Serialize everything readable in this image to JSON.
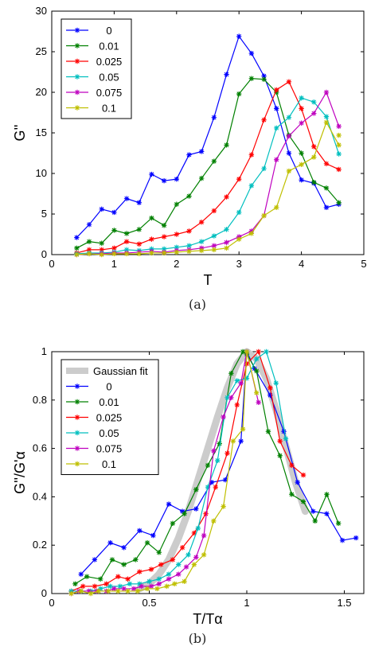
{
  "colors": {
    "0": "#0000ff",
    "0.01": "#008000",
    "0.025": "#ff0000",
    "0.05": "#00bfbf",
    "0.075": "#bf00bf",
    "0.1": "#bfbf00",
    "gauss": "#cccccc"
  },
  "chart_data": [
    {
      "type": "line",
      "panel": "(a)",
      "xlabel": "T",
      "ylabel": "G''",
      "xlim": [
        0,
        5
      ],
      "ylim": [
        0,
        30
      ],
      "xticks": [
        "0",
        "1",
        "2",
        "3",
        "4",
        "5"
      ],
      "yticks": [
        "0",
        "5",
        "10",
        "15",
        "20",
        "25",
        "30"
      ],
      "legend": "top-left",
      "x": [
        0.4,
        0.6,
        0.8,
        1.0,
        1.2,
        1.4,
        1.6,
        1.8,
        2.0,
        2.2,
        2.4,
        2.6,
        2.8,
        3.0,
        3.2,
        3.4,
        3.6,
        3.8,
        4.0,
        4.2,
        4.4,
        4.6
      ],
      "series": [
        {
          "name": "0",
          "values": [
            2.1,
            3.7,
            5.6,
            5.2,
            6.9,
            6.4,
            9.9,
            9.1,
            9.3,
            12.3,
            12.7,
            16.9,
            22.2,
            26.9,
            24.8,
            22.0,
            18.0,
            12.5,
            9.2,
            8.8,
            5.8,
            6.2
          ]
        },
        {
          "name": "0.01",
          "values": [
            0.8,
            1.6,
            1.4,
            3.0,
            2.6,
            3.1,
            4.5,
            3.6,
            6.2,
            7.2,
            9.4,
            11.5,
            13.5,
            19.8,
            21.7,
            21.6,
            20.0,
            14.7,
            12.5,
            8.9,
            8.2,
            6.4
          ]
        },
        {
          "name": "0.025",
          "values": [
            0.2,
            0.6,
            0.6,
            0.8,
            1.6,
            1.3,
            1.9,
            2.2,
            2.5,
            2.9,
            4.0,
            5.4,
            7.1,
            9.3,
            12.3,
            16.6,
            20.3,
            21.3,
            18.0,
            13.3,
            11.2,
            10.5
          ]
        },
        {
          "name": "0.05",
          "values": [
            0.1,
            0.2,
            0.2,
            0.3,
            0.6,
            0.5,
            0.7,
            0.7,
            0.9,
            1.1,
            1.6,
            2.3,
            3.1,
            5.2,
            8.5,
            10.6,
            15.6,
            16.9,
            19.3,
            18.8,
            17.0,
            12.4
          ]
        },
        {
          "name": "0.075",
          "values": [
            0.0,
            0.1,
            0.1,
            0.2,
            0.2,
            0.3,
            0.4,
            0.3,
            0.5,
            0.6,
            0.8,
            1.1,
            1.5,
            2.2,
            2.9,
            4.8,
            11.7,
            14.6,
            16.2,
            17.4,
            20.0,
            15.8
          ]
        },
        {
          "name": "0.1",
          "values": [
            0.0,
            0.1,
            0.0,
            0.1,
            0.1,
            0.1,
            0.2,
            0.2,
            0.3,
            0.4,
            0.5,
            0.6,
            0.8,
            1.9,
            2.6,
            4.8,
            5.8,
            10.3,
            11.1,
            12.0,
            16.3,
            13.5
          ]
        }
      ],
      "extra_point": {
        "series": "0.1",
        "x": 4.6,
        "y": 14.7
      }
    },
    {
      "type": "line",
      "panel": "(b)",
      "xlabel": "T/Tα",
      "ylabel": "G''/G'α",
      "xlim": [
        0,
        1.6
      ],
      "ylim": [
        0,
        1
      ],
      "xticks": [
        "0",
        "0.5",
        "1",
        "1.5"
      ],
      "yticks": [
        "0",
        "0.2",
        "0.4",
        "0.6",
        "0.8",
        "1"
      ],
      "legend": "top-left",
      "gaussian_fit_label": "Gaussian fit",
      "gaussian_fit": {
        "x": [
          0.45,
          0.5,
          0.55,
          0.6,
          0.65,
          0.7,
          0.75,
          0.8,
          0.85,
          0.9,
          0.95,
          1.0,
          1.05,
          1.1,
          1.15,
          1.2,
          1.25,
          1.3
        ],
        "y": [
          0.02,
          0.04,
          0.08,
          0.14,
          0.23,
          0.34,
          0.47,
          0.6,
          0.73,
          0.85,
          0.95,
          1.0,
          0.97,
          0.89,
          0.76,
          0.61,
          0.46,
          0.34
        ]
      },
      "series": [
        {
          "name": "0",
          "x": [
            0.15,
            0.22,
            0.3,
            0.37,
            0.45,
            0.52,
            0.6,
            0.67,
            0.74,
            0.82,
            0.89,
            0.97,
            1.0,
            1.04,
            1.12,
            1.19,
            1.26,
            1.34,
            1.41,
            1.49,
            1.56
          ],
          "y": [
            0.08,
            0.14,
            0.21,
            0.19,
            0.26,
            0.24,
            0.37,
            0.34,
            0.35,
            0.46,
            0.47,
            0.63,
            1.0,
            0.93,
            0.82,
            0.67,
            0.46,
            0.34,
            0.33,
            0.22,
            0.23
          ]
        },
        {
          "name": "0.01",
          "x": [
            0.12,
            0.18,
            0.25,
            0.31,
            0.37,
            0.43,
            0.49,
            0.55,
            0.62,
            0.68,
            0.74,
            0.8,
            0.86,
            0.92,
            0.98,
            1.0,
            1.05,
            1.11,
            1.17,
            1.23,
            1.29,
            1.35,
            1.41,
            1.47
          ],
          "y": [
            0.04,
            0.07,
            0.06,
            0.14,
            0.12,
            0.14,
            0.21,
            0.17,
            0.29,
            0.33,
            0.43,
            0.53,
            0.62,
            0.91,
            1.0,
            0.99,
            0.92,
            0.67,
            0.57,
            0.41,
            0.38,
            0.3,
            0.41,
            0.29
          ]
        },
        {
          "name": "0.025",
          "x": [
            0.1,
            0.16,
            0.22,
            0.28,
            0.34,
            0.39,
            0.45,
            0.51,
            0.56,
            0.62,
            0.67,
            0.73,
            0.79,
            0.84,
            0.9,
            0.95,
            1.0,
            1.06,
            1.12,
            1.17,
            1.23,
            1.29
          ],
          "y": [
            0.01,
            0.03,
            0.03,
            0.04,
            0.07,
            0.06,
            0.09,
            0.1,
            0.12,
            0.14,
            0.19,
            0.25,
            0.33,
            0.44,
            0.58,
            0.78,
            0.95,
            1.0,
            0.85,
            0.63,
            0.53,
            0.49
          ]
        },
        {
          "name": "0.05",
          "x": [
            0.1,
            0.15,
            0.2,
            0.25,
            0.3,
            0.35,
            0.4,
            0.45,
            0.5,
            0.55,
            0.6,
            0.65,
            0.7,
            0.75,
            0.8,
            0.85,
            0.9,
            0.95,
            1.0,
            1.05,
            1.1,
            1.15,
            1.2
          ],
          "y": [
            0.01,
            0.01,
            0.01,
            0.02,
            0.03,
            0.03,
            0.04,
            0.04,
            0.05,
            0.06,
            0.08,
            0.12,
            0.16,
            0.27,
            0.44,
            0.55,
            0.81,
            0.88,
            0.89,
            0.97,
            1.0,
            0.87,
            0.64
          ]
        },
        {
          "name": "0.075",
          "x": [
            0.1,
            0.14,
            0.19,
            0.23,
            0.28,
            0.32,
            0.37,
            0.42,
            0.46,
            0.51,
            0.55,
            0.6,
            0.65,
            0.69,
            0.74,
            0.78,
            0.83,
            0.88,
            0.92,
            0.97,
            1.0,
            1.06
          ],
          "y": [
            0.0,
            0.01,
            0.01,
            0.01,
            0.01,
            0.02,
            0.02,
            0.02,
            0.03,
            0.03,
            0.04,
            0.06,
            0.08,
            0.11,
            0.15,
            0.24,
            0.59,
            0.73,
            0.81,
            0.87,
            1.0,
            0.79
          ]
        },
        {
          "name": "0.1",
          "x": [
            0.1,
            0.15,
            0.2,
            0.24,
            0.29,
            0.34,
            0.39,
            0.44,
            0.49,
            0.54,
            0.59,
            0.63,
            0.68,
            0.73,
            0.78,
            0.83,
            0.88,
            0.93,
            0.98,
            1.0,
            1.05
          ],
          "y": [
            0.0,
            0.01,
            0.0,
            0.01,
            0.01,
            0.01,
            0.01,
            0.01,
            0.02,
            0.02,
            0.03,
            0.04,
            0.05,
            0.12,
            0.16,
            0.3,
            0.36,
            0.63,
            0.68,
            1.0,
            0.83
          ]
        }
      ]
    }
  ],
  "captions": {
    "a": "(a)",
    "b": "(b)"
  }
}
